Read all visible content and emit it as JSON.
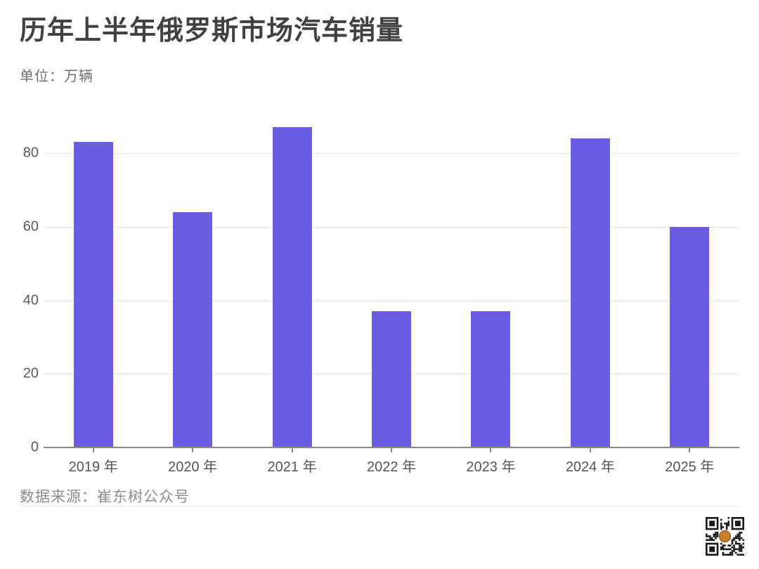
{
  "header": {
    "title": "历年上半年俄罗斯市场汽车销量",
    "subtitle": "单位：万辆"
  },
  "chart_data": {
    "type": "bar",
    "title": "历年上半年俄罗斯市场汽车销量",
    "subtitle": "单位：万辆",
    "categories": [
      "2019 年",
      "2020 年",
      "2021 年",
      "2022 年",
      "2023 年",
      "2024 年",
      "2025 年"
    ],
    "values": [
      83,
      64,
      87,
      37,
      37,
      84,
      60
    ],
    "xlabel": "",
    "ylabel": "万辆",
    "ylim": [
      0,
      90
    ],
    "yticks": [
      0,
      20,
      40,
      60,
      80
    ],
    "grid": "horizontal",
    "legend": "none",
    "bar_color": "#6b5ce4",
    "gridline_color": "#e4e4e4",
    "axis_color": "#8a8a8a"
  },
  "footer": {
    "source": "数据来源：崔东树公众号"
  },
  "icons": {
    "qr_code": "qr-code-icon",
    "qr_logo_color": "#c8802f"
  }
}
